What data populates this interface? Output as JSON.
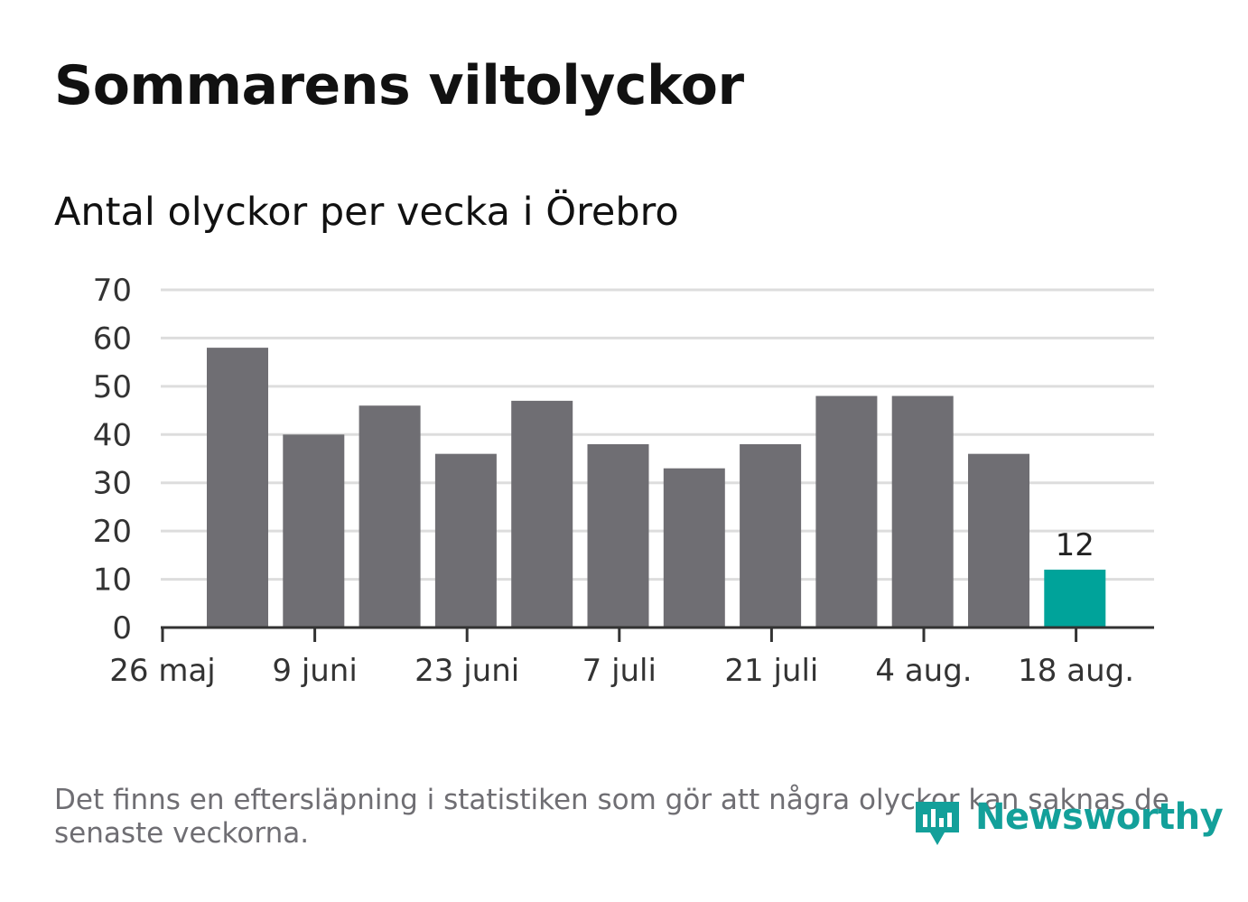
{
  "title": "Sommarens viltolyckor",
  "subtitle": "Antal olyckor per vecka i Örebro",
  "footnote": "Det finns en eftersläpning i statistiken som gör att några olyckor kan saknas de senaste veckorna.",
  "brand": {
    "name": "Newsworthy",
    "icon": "newsworthy-logo-icon"
  },
  "colors": {
    "bar": "#6f6e73",
    "highlight": "#00a39a",
    "grid": "#dddddd",
    "axis": "#333333",
    "brand": "#13a09a"
  },
  "chart_data": {
    "type": "bar",
    "x_tick_labels": [
      "26 maj",
      "9 juni",
      "23 juni",
      "7 juli",
      "21 juli",
      "4 aug.",
      "18 aug."
    ],
    "values": [
      58,
      40,
      46,
      36,
      47,
      38,
      33,
      38,
      48,
      48,
      36,
      12
    ],
    "highlight_index": 11,
    "value_labels": [
      {
        "index": 11,
        "text": "12"
      }
    ],
    "ylim": [
      0,
      70
    ],
    "yticks": [
      0,
      10,
      20,
      30,
      40,
      50,
      60,
      70
    ],
    "grid": true,
    "legend": "none"
  }
}
